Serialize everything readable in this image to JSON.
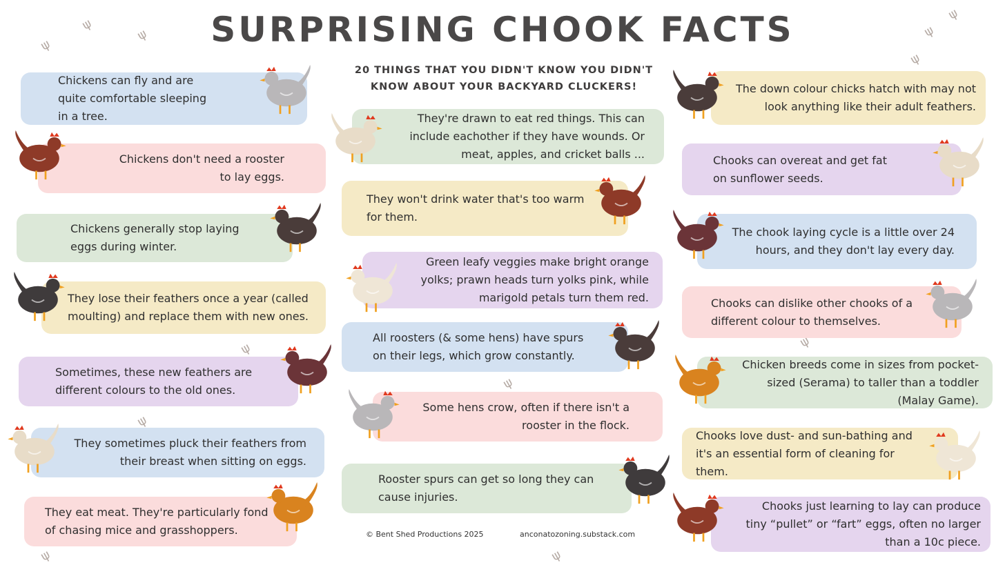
{
  "header": {
    "title": "Surprising Chook Facts",
    "subtitle_line1": "20 things that you didn't know you didn't",
    "subtitle_line2": "know about your backyard cluckers!"
  },
  "facts": [
    {
      "text": "Chickens can fly and are quite comfortable sleeping in a tree.",
      "color": "#d3e1f1"
    },
    {
      "text": "Chickens don't need a rooster to lay eggs.",
      "color": "#fbdcdc"
    },
    {
      "text": "Chickens generally stop laying eggs during winter.",
      "color": "#dce8d8"
    },
    {
      "text": "They lose their feathers once a year (called moulting) and replace them with new ones.",
      "color": "#f5eac6"
    },
    {
      "text": "Sometimes, these new feathers are different colours to the old ones.",
      "color": "#e5d5ee"
    },
    {
      "text": "They sometimes pluck their feathers from their breast when sitting on eggs.",
      "color": "#d3e1f1"
    },
    {
      "text": "They eat meat. They're particularly fond of chasing mice and grasshoppers.",
      "color": "#fbdcdc"
    },
    {
      "text": "They're drawn to eat red things. This can include eachother if they have wounds. Or meat, apples, and cricket balls ...",
      "color": "#dce8d8"
    },
    {
      "text": "They won't drink water that's too warm for them.",
      "color": "#f5eac6"
    },
    {
      "text": "Green leafy veggies make bright orange yolks; prawn heads turn yolks pink, while marigold petals turn them red.",
      "color": "#e5d5ee"
    },
    {
      "text": "All roosters (& some hens) have spurs on their legs, which grow constantly.",
      "color": "#d3e1f1"
    },
    {
      "text": "Some hens crow, often if there isn't a rooster in the flock.",
      "color": "#fbdcdc"
    },
    {
      "text": "Rooster spurs can get so long they can cause injuries.",
      "color": "#dce8d8"
    },
    {
      "text": "The down colour chicks hatch with may not look anything like their adult feathers.",
      "color": "#f5eac6"
    },
    {
      "text": "Chooks can overeat and get fat on sunflower seeds.",
      "color": "#e5d5ee"
    },
    {
      "text": "The chook laying cycle is a little over 24 hours, and they don't lay every day.",
      "color": "#d3e1f1"
    },
    {
      "text": "Chooks can dislike other chooks of a different colour to themselves.",
      "color": "#fbdcdc"
    },
    {
      "text": "Chicken breeds come in sizes from pocket-sized (Serama) to taller than a toddler (Malay Game).",
      "color": "#dce8d8"
    },
    {
      "text": "Chooks love dust- and sun-bathing and it's an essential form of cleaning for them.",
      "color": "#f5eac6"
    },
    {
      "text": "Chooks just learning to lay can produce tiny “pullet” or “fart” eggs, often no larger than a 10c piece.",
      "color": "#e5d5ee"
    }
  ],
  "footer": {
    "copyright": "© Bent Shed Productions 2025",
    "link": "anconatozoning.substack.com"
  }
}
